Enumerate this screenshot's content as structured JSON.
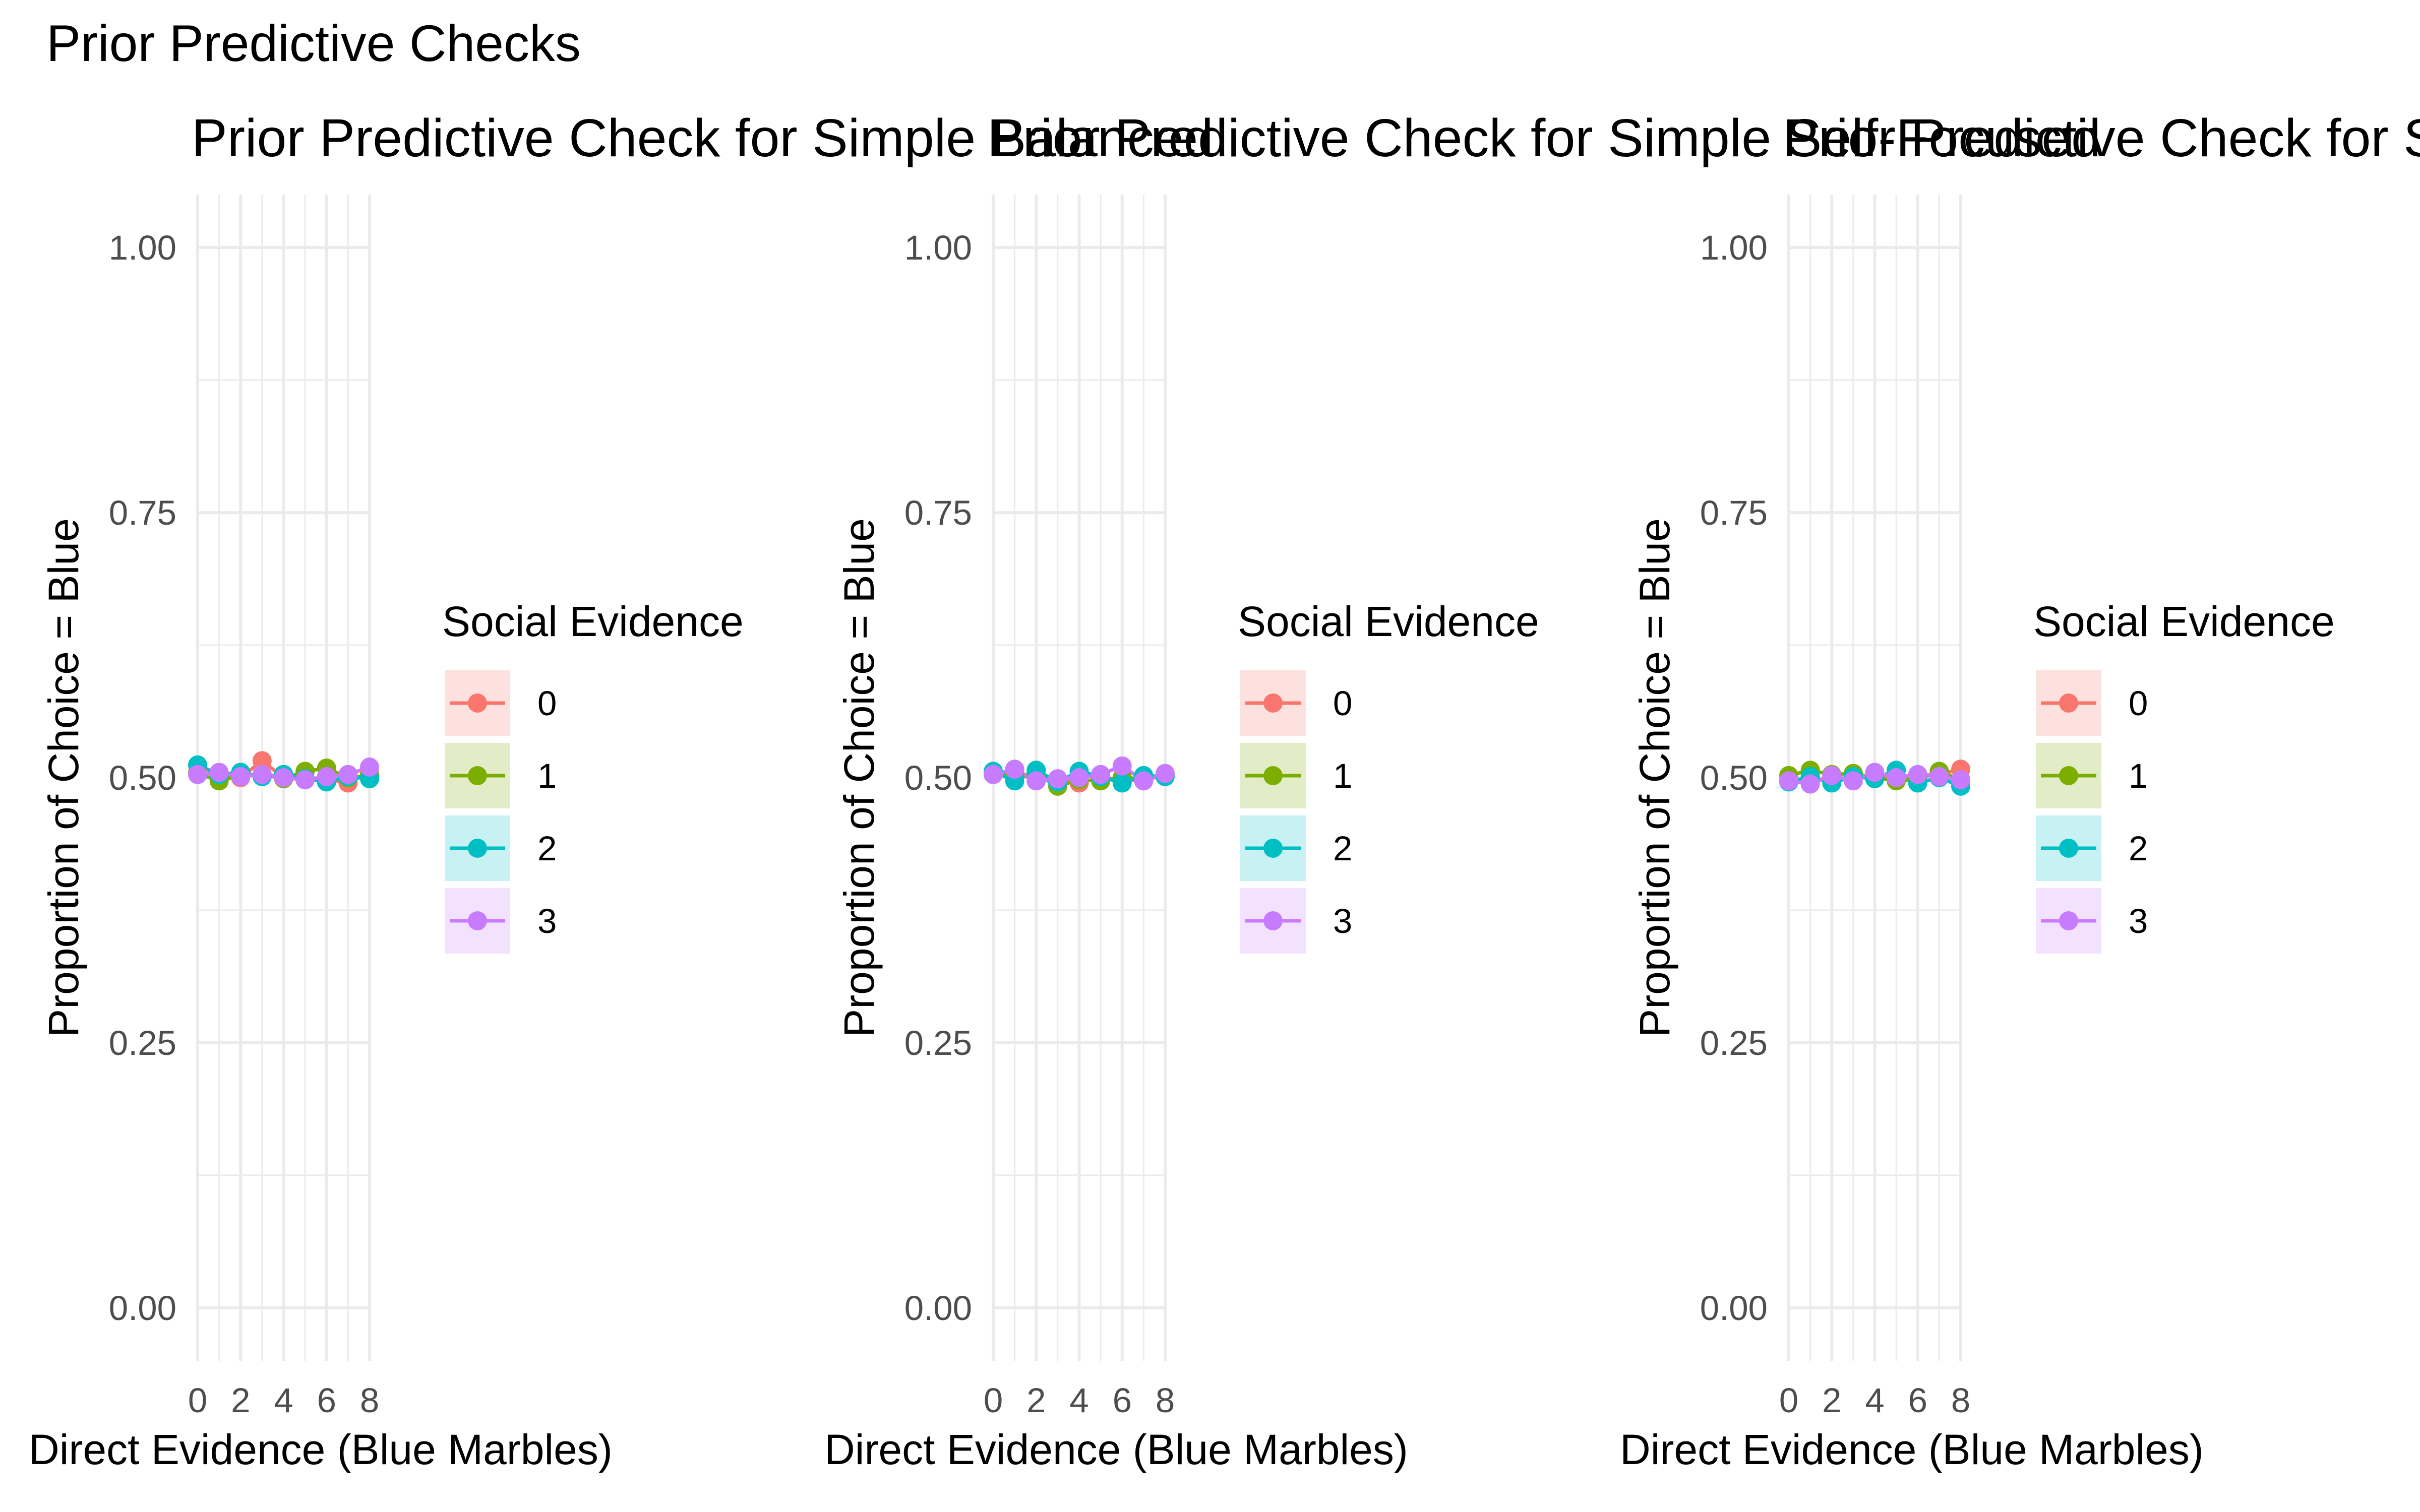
{
  "figure_title": "Prior Predictive Checks",
  "colors": {
    "series": [
      "#F8766D",
      "#7CAE00",
      "#00BFC4",
      "#C77CFF"
    ],
    "grid": "#ebebeb",
    "tick_text": "#4d4d4d"
  },
  "chart_data": [
    {
      "type": "line",
      "title": "Prior Predictive Check for Simple Balanced",
      "xlabel": "Direct Evidence (Blue Marbles)",
      "ylabel": "Proportion of Choice = Blue",
      "x": [
        0,
        1,
        2,
        3,
        4,
        5,
        6,
        7,
        8
      ],
      "xticks": [
        "0",
        "2",
        "4",
        "6",
        "8"
      ],
      "yticks": [
        "0.00",
        "0.25",
        "0.50",
        "0.75",
        "1.00"
      ],
      "xlim": [
        0,
        8
      ],
      "ylim": [
        -0.05,
        1.05
      ],
      "grid": true,
      "legend_title": "Social Evidence",
      "legend_position": "right",
      "series": [
        {
          "name": "0",
          "values": [
            0.505,
            0.503,
            0.5,
            0.516,
            0.5,
            0.499,
            0.498,
            0.495,
            0.505
          ]
        },
        {
          "name": "1",
          "values": [
            0.504,
            0.497,
            0.502,
            0.503,
            0.499,
            0.506,
            0.509,
            0.5,
            0.502
          ]
        },
        {
          "name": "2",
          "values": [
            0.512,
            0.503,
            0.505,
            0.501,
            0.503,
            0.499,
            0.496,
            0.501,
            0.499
          ]
        },
        {
          "name": "3",
          "values": [
            0.503,
            0.505,
            0.501,
            0.503,
            0.5,
            0.498,
            0.501,
            0.503,
            0.51
          ]
        }
      ]
    },
    {
      "type": "line",
      "title": "Prior Predictive Check for Simple Self-Focused",
      "xlabel": "Direct Evidence (Blue Marbles)",
      "ylabel": "Proportion of Choice = Blue",
      "x": [
        0,
        1,
        2,
        3,
        4,
        5,
        6,
        7,
        8
      ],
      "xticks": [
        "0",
        "2",
        "4",
        "6",
        "8"
      ],
      "yticks": [
        "0.00",
        "0.25",
        "0.50",
        "0.75",
        "1.00"
      ],
      "xlim": [
        0,
        8
      ],
      "ylim": [
        -0.05,
        1.05
      ],
      "grid": true,
      "legend_title": "Social Evidence",
      "legend_position": "right",
      "series": [
        {
          "name": "0",
          "values": [
            0.503,
            0.502,
            0.5,
            0.497,
            0.495,
            0.5,
            0.498,
            0.497,
            0.503
          ]
        },
        {
          "name": "1",
          "values": [
            0.505,
            0.503,
            0.503,
            0.492,
            0.498,
            0.497,
            0.5,
            0.499,
            0.502
          ]
        },
        {
          "name": "2",
          "values": [
            0.506,
            0.497,
            0.507,
            0.496,
            0.506,
            0.501,
            0.495,
            0.502,
            0.501
          ]
        },
        {
          "name": "3",
          "values": [
            0.503,
            0.508,
            0.497,
            0.499,
            0.5,
            0.503,
            0.511,
            0.497,
            0.504
          ]
        }
      ]
    },
    {
      "type": "line",
      "title": "Prior Predictive Check for Simple Socially-Focused",
      "xlabel": "Direct Evidence (Blue Marbles)",
      "ylabel": "Proportion of Choice = Blue",
      "x": [
        0,
        1,
        2,
        3,
        4,
        5,
        6,
        7,
        8
      ],
      "xticks": [
        "0",
        "2",
        "4",
        "6",
        "8"
      ],
      "yticks": [
        "0.00",
        "0.25",
        "0.50",
        "0.75",
        "1.00"
      ],
      "xlim": [
        0,
        8
      ],
      "ylim": [
        -0.05,
        1.05
      ],
      "grid": true,
      "legend_title": "Social Evidence",
      "legend_position": "right",
      "series": [
        {
          "name": "0",
          "values": [
            0.498,
            0.497,
            0.5,
            0.499,
            0.502,
            0.498,
            0.502,
            0.503,
            0.508
          ]
        },
        {
          "name": "1",
          "values": [
            0.502,
            0.507,
            0.503,
            0.504,
            0.5,
            0.497,
            0.498,
            0.506,
            0.498
          ]
        },
        {
          "name": "2",
          "values": [
            0.496,
            0.501,
            0.495,
            0.501,
            0.499,
            0.507,
            0.495,
            0.5,
            0.492
          ]
        },
        {
          "name": "3",
          "values": [
            0.497,
            0.494,
            0.502,
            0.497,
            0.505,
            0.5,
            0.503,
            0.501,
            0.498
          ]
        }
      ]
    }
  ]
}
